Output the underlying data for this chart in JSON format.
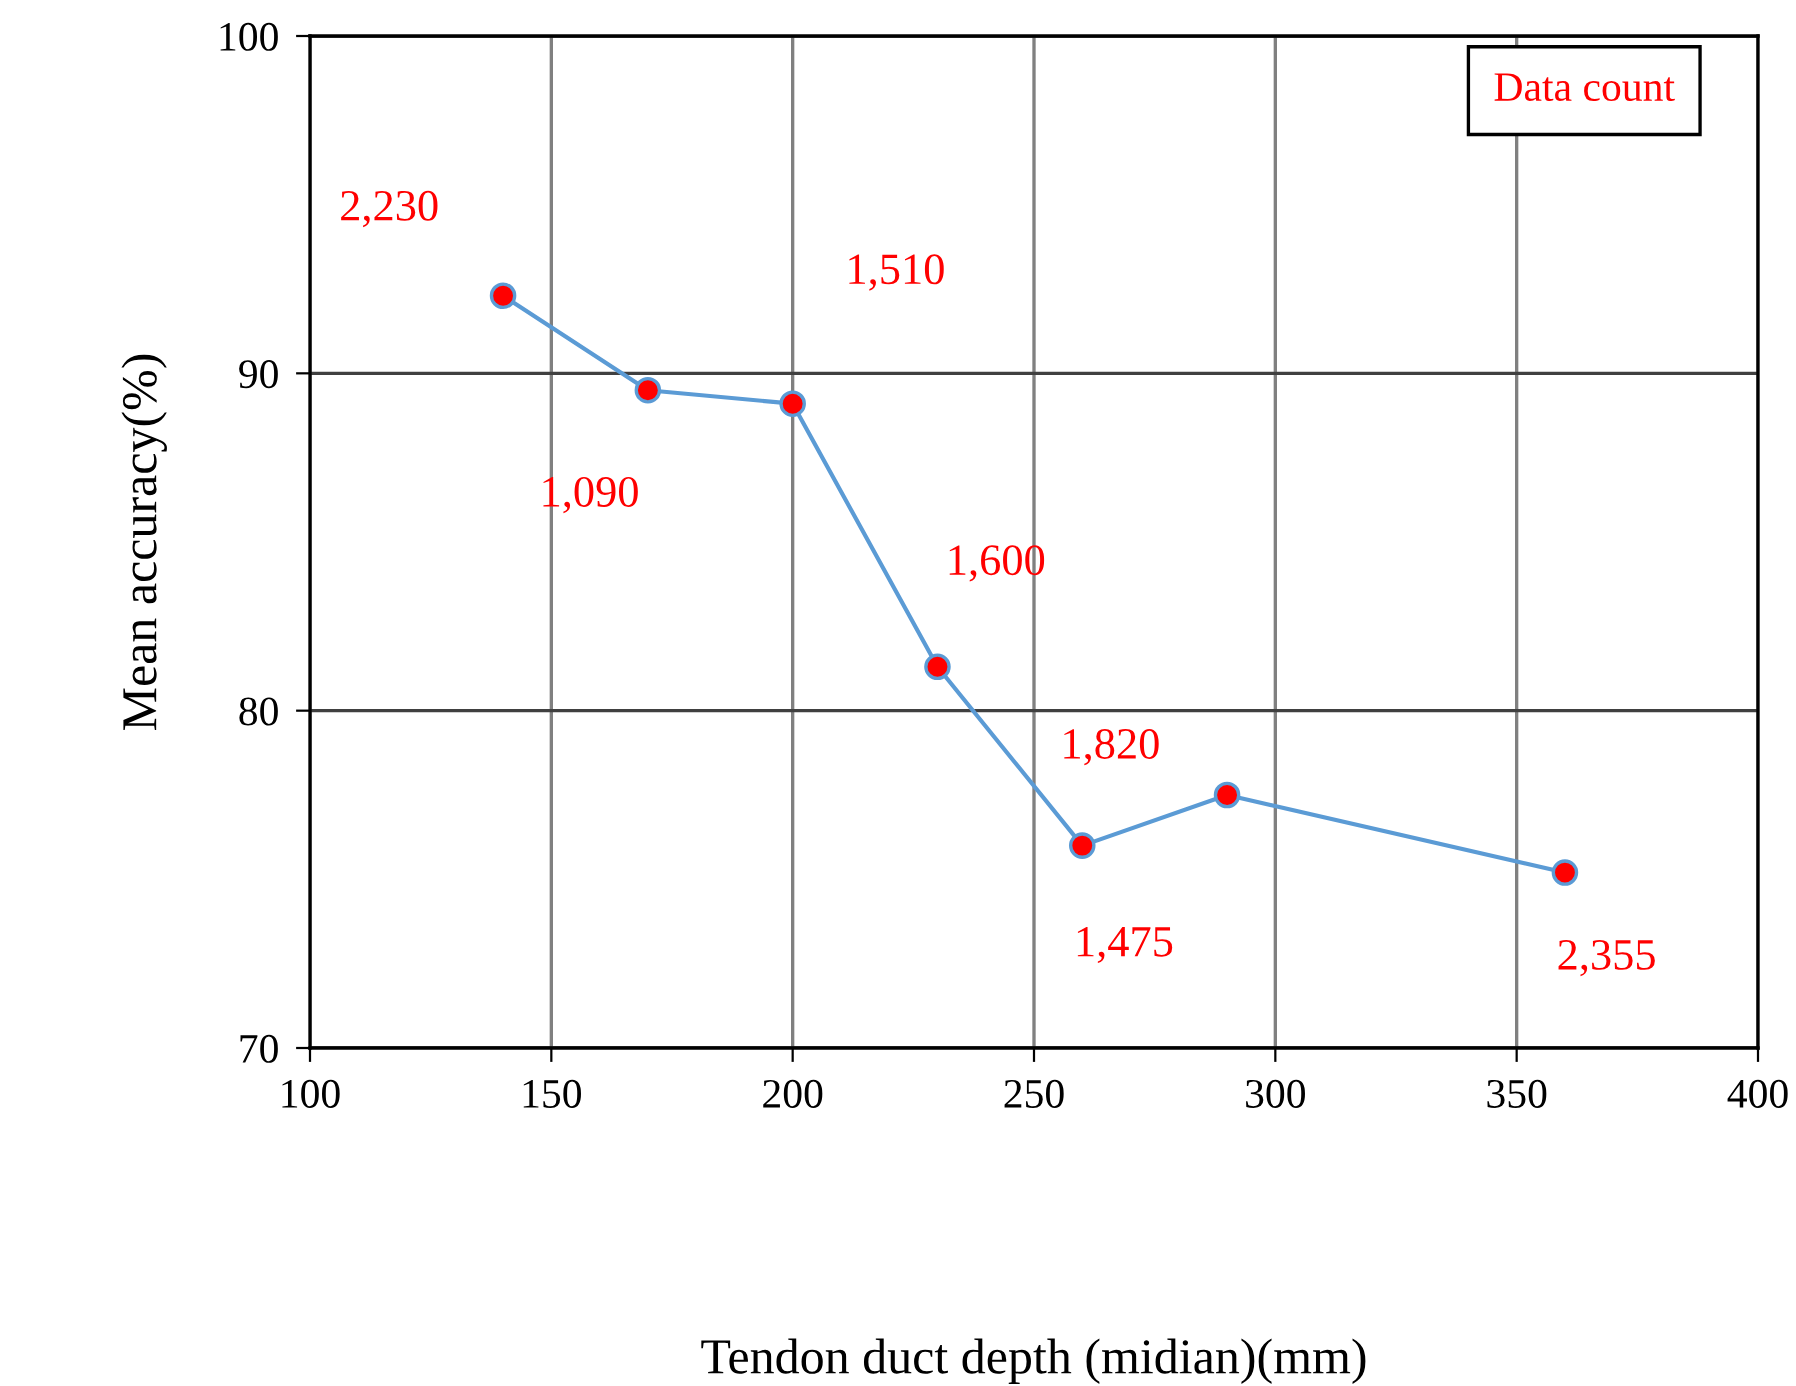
{
  "chart_data": {
    "type": "line",
    "xlabel": "Tendon duct depth (midian)(mm)",
    "ylabel": "Mean accuracy(%)",
    "x": [
      140,
      170,
      200,
      230,
      260,
      290,
      360
    ],
    "series": [
      {
        "color": "#5b9bd5",
        "colors": [
          "#ff0000",
          "#ff0000",
          "#ff0000",
          "#ff0000",
          "#ff0000",
          "#ff0000",
          "#ff0000"
        ],
        "values": [
          92.3,
          89.5,
          89.1,
          81.3,
          76.0,
          77.5,
          75.2
        ]
      }
    ],
    "xlim": [
      100,
      400
    ],
    "xticks": [
      100,
      150,
      200,
      250,
      300,
      350,
      400
    ],
    "ylim": [
      70,
      100
    ],
    "yticks": [
      70,
      80,
      90,
      100
    ],
    "grid": true,
    "marker": "circle",
    "line_style": "solid",
    "annotations": [
      "Data count",
      {
        "text": "2,230",
        "x": 140,
        "y": 92.3
      },
      {
        "text": "1,090",
        "x": 170,
        "y": 89.5
      },
      {
        "text": "1,510",
        "x": 200,
        "y": 89.1
      },
      {
        "text": "1,600",
        "x": 230,
        "y": 81.3
      },
      {
        "text": "1,475",
        "x": 260,
        "y": 76.0
      },
      {
        "text": "1,820",
        "x": 290,
        "y": 77.5
      },
      {
        "text": "2,355",
        "x": 360,
        "y": 75.2
      }
    ]
  }
}
